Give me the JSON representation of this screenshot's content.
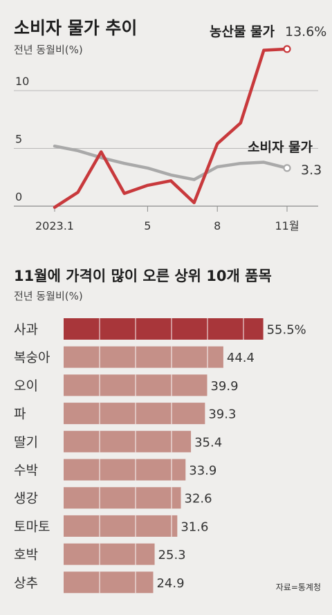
{
  "colors": {
    "background": "#efeeec",
    "farm_line": "#c8393c",
    "cpi_line": "#a9a9a9",
    "top_bar": "#a8363a",
    "bar": "#c59088"
  },
  "chart_data": [
    {
      "type": "line",
      "title": "소비자 물가 추이",
      "subtitle": "전년 동월비(%)",
      "ylim": [
        0,
        20
      ],
      "y_ticks": [
        "0",
        "5",
        "10"
      ],
      "x_ticks": [
        "2023.1",
        "5",
        "8",
        "11월"
      ],
      "grid": true,
      "series": [
        {
          "name": "농산물 물가",
          "color": "#c8393c",
          "end_label": "13.6%",
          "values": [
            -0.1,
            1.2,
            4.7,
            1.1,
            1.8,
            2.2,
            0.3,
            5.4,
            7.2,
            13.5,
            13.6
          ]
        },
        {
          "name": "소비자 물가",
          "color": "#a9a9a9",
          "end_label": "3.3",
          "values": [
            5.2,
            4.8,
            4.2,
            3.7,
            3.3,
            2.7,
            2.3,
            3.4,
            3.7,
            3.8,
            3.3
          ]
        }
      ]
    },
    {
      "type": "bar",
      "title": "11월에 가격이 많이 오른 상위 10개 품목",
      "subtitle": "전년 동월비(%)",
      "categories": [
        "사과",
        "복숭아",
        "오이",
        "파",
        "딸기",
        "수박",
        "생강",
        "토마토",
        "호박",
        "상추"
      ],
      "values": [
        55.5,
        44.4,
        39.9,
        39.3,
        35.4,
        33.9,
        32.6,
        31.6,
        25.3,
        24.9
      ],
      "value_labels": [
        "55.5%",
        "44.4",
        "39.9",
        "39.3",
        "35.4",
        "33.9",
        "32.6",
        "31.6",
        "25.3",
        "24.9"
      ],
      "grid_step": 10
    }
  ],
  "source": "자료=통계청"
}
